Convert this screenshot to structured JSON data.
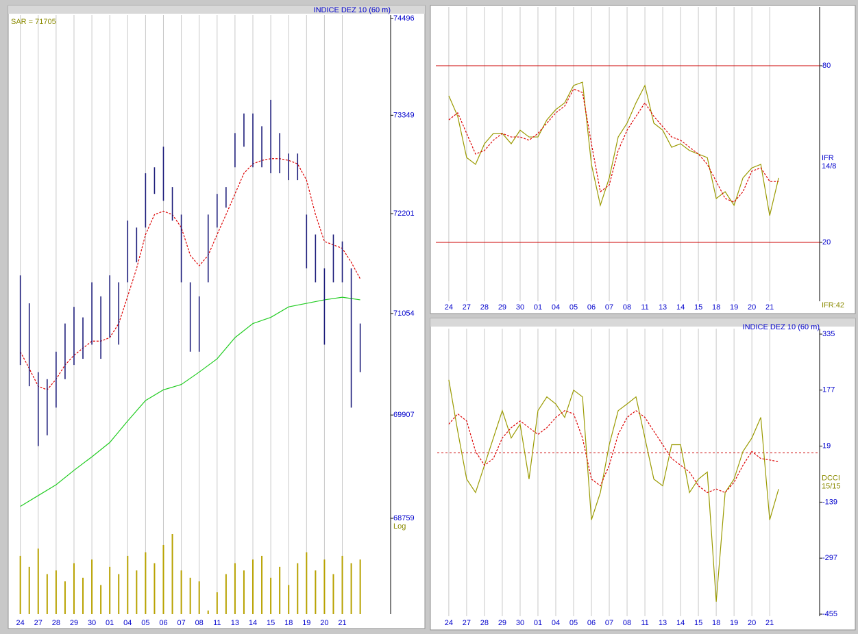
{
  "chart_data": [
    {
      "type": "hilo",
      "title": "INDICE DEZ 10 (60 m)",
      "annotation": "SAR = 71705",
      "scale_label": "Log",
      "log_scale": true,
      "categories": [
        "24",
        "27",
        "28",
        "29",
        "30",
        "01",
        "04",
        "05",
        "06",
        "07",
        "08",
        "11",
        "13",
        "14",
        "15",
        "18",
        "19",
        "20",
        "21"
      ],
      "xlim": [
        -0.6,
        20.7
      ],
      "x": [
        0,
        0.5,
        1,
        1.5,
        2,
        2.5,
        3,
        3.5,
        4,
        4.5,
        5,
        5.5,
        6,
        6.5,
        7,
        7.5,
        8,
        8.5,
        9,
        9.5,
        10,
        10.5,
        11,
        11.5,
        12,
        12.5,
        13,
        13.5,
        14,
        14.5,
        15,
        15.5,
        16,
        16.5,
        17,
        17.5,
        18,
        18.5,
        19
      ],
      "high": [
        71490,
        71170,
        70390,
        70310,
        70620,
        70940,
        71130,
        71010,
        71410,
        71250,
        71490,
        71410,
        72120,
        72040,
        72670,
        72740,
        72980,
        72510,
        72190,
        71410,
        71250,
        72190,
        72430,
        72510,
        73140,
        73370,
        73370,
        73220,
        73530,
        73140,
        72900,
        72900,
        72190,
        71960,
        71570,
        71960,
        71880,
        71570,
        70940
      ],
      "low": [
        70470,
        70230,
        69560,
        69680,
        69990,
        70310,
        70470,
        70540,
        70700,
        70540,
        70780,
        70700,
        71410,
        71640,
        72040,
        72430,
        72350,
        72120,
        71410,
        70620,
        70620,
        71410,
        72040,
        72270,
        72740,
        72980,
        72740,
        72740,
        72670,
        72670,
        72590,
        72590,
        71570,
        71410,
        70700,
        71410,
        71410,
        69990,
        70390
      ],
      "bar_color": "#1c1c7a",
      "series": [
        {
          "color": "#dd0000",
          "dashed": true,
          "values": [
            70620,
            70430,
            70230,
            70190,
            70310,
            70470,
            70580,
            70660,
            70740,
            70740,
            70780,
            70940,
            71250,
            71570,
            71960,
            72190,
            72230,
            72190,
            72040,
            71720,
            71600,
            71720,
            71960,
            72190,
            72430,
            72670,
            72780,
            72820,
            72840,
            72840,
            72820,
            72780,
            72590,
            72190,
            71880,
            71840,
            71800,
            71640,
            71450
          ]
        },
        {
          "color": "#22cc22",
          "x": [
            0,
            1,
            2,
            3,
            4,
            5,
            6,
            7,
            8,
            9,
            10,
            11,
            12,
            13,
            14,
            15,
            16,
            17,
            18,
            19
          ],
          "values": [
            68890,
            69010,
            69130,
            69290,
            69440,
            69600,
            69840,
            70070,
            70190,
            70250,
            70390,
            70540,
            70780,
            70940,
            71010,
            71130,
            71170,
            71210,
            71240,
            71210
          ]
        }
      ],
      "volume": {
        "color": "#b8a200",
        "values": [
          80,
          65,
          90,
          55,
          60,
          45,
          70,
          50,
          75,
          40,
          65,
          55,
          80,
          60,
          85,
          70,
          95,
          110,
          60,
          50,
          45,
          5,
          30,
          55,
          70,
          60,
          75,
          80,
          50,
          65,
          40,
          70,
          85,
          60,
          75,
          55,
          80,
          70,
          75
        ]
      },
      "ylim": [
        68759,
        74496
      ],
      "yticks": [
        74496,
        73349,
        72201,
        71054,
        69907,
        68759
      ],
      "text_color": "#0000cc",
      "label_color": "#8a8a00"
    },
    {
      "type": "line",
      "labels": [
        "IFR",
        "14/8"
      ],
      "footer": "IFR:42",
      "categories": [
        "24",
        "27",
        "28",
        "29",
        "30",
        "01",
        "04",
        "05",
        "06",
        "07",
        "08",
        "11",
        "13",
        "14",
        "15",
        "18",
        "19",
        "20",
        "21"
      ],
      "xlim": [
        -0.65,
        20.8
      ],
      "x": [
        0,
        0.5,
        1,
        1.5,
        2,
        2.5,
        3,
        3.5,
        4,
        4.5,
        5,
        5.5,
        6,
        6.5,
        7,
        7.5,
        8,
        8.5,
        9,
        9.5,
        10,
        10.5,
        11,
        11.5,
        12,
        12.5,
        13,
        13.5,
        14,
        14.5,
        15,
        15.5,
        16,
        16.5,
        17,
        17.5,
        18,
        18.5
      ],
      "series": [
        {
          "color": "#9a9a00",
          "values": [
            69.8,
            62.8,
            48.8,
            46.5,
            53.5,
            57,
            57,
            53.5,
            58.1,
            55.8,
            55.8,
            61.6,
            65.1,
            67.4,
            73.3,
            74.4,
            46.5,
            32.6,
            41.9,
            55.8,
            60.5,
            67.4,
            73.3,
            60.5,
            58.1,
            52.3,
            53.5,
            51.2,
            50,
            48.8,
            34.9,
            37.2,
            32.6,
            41.9,
            45.3,
            46.5,
            29.1,
            41.9
          ]
        },
        {
          "color": "#dd0000",
          "dashed": true,
          "values": [
            61.6,
            64,
            57,
            50,
            51.2,
            54.7,
            57,
            55.8,
            55.8,
            54.7,
            57,
            60.5,
            64,
            66.3,
            72.1,
            70.9,
            53.5,
            37.2,
            39.5,
            51.2,
            58.1,
            62.8,
            67.4,
            62.8,
            59.3,
            55.8,
            54.7,
            52.3,
            50,
            46.5,
            40.7,
            34.9,
            33.7,
            37.2,
            44.2,
            45.3,
            40.7,
            40.7
          ]
        }
      ],
      "ylim": [
        0,
        100
      ],
      "yticks": [
        80,
        20
      ],
      "tick_line_color": "#cc0000",
      "text_color": "#0000cc",
      "label_color": "#8a8a00"
    },
    {
      "type": "line",
      "title": "INDICE DEZ 10 (60 m)",
      "labels": [
        "DCCI",
        "15/15"
      ],
      "categories": [
        "24",
        "27",
        "28",
        "29",
        "30",
        "01",
        "04",
        "05",
        "06",
        "07",
        "08",
        "11",
        "13",
        "14",
        "15",
        "18",
        "19",
        "20",
        "21"
      ],
      "xlim": [
        -0.65,
        20.8
      ],
      "x": [
        0,
        0.5,
        1,
        1.5,
        2,
        2.5,
        3,
        3.5,
        4,
        4.5,
        5,
        5.5,
        6,
        6.5,
        7,
        7.5,
        8,
        8.5,
        9,
        9.5,
        10,
        10.5,
        11,
        11.5,
        12,
        12.5,
        13,
        13.5,
        14,
        14.5,
        15,
        15.5,
        16,
        16.5,
        17,
        17.5,
        18,
        18.5
      ],
      "series": [
        {
          "color": "#9a9a00",
          "values": [
            206,
            61,
            -74,
            -112,
            -35,
            42,
            119,
            42,
            81,
            -74,
            119,
            158,
            138,
            100,
            177,
            158,
            -189,
            -112,
            23,
            119,
            138,
            158,
            42,
            -74,
            -93,
            23,
            23,
            -112,
            -74,
            -54,
            -420,
            -112,
            -74,
            4,
            42,
            100,
            -189,
            -102
          ]
        },
        {
          "color": "#dd0000",
          "dashed": true,
          "values": [
            81,
            110,
            90,
            4,
            -35,
            -16,
            42,
            71,
            90,
            71,
            52,
            71,
            100,
            119,
            110,
            42,
            -74,
            -93,
            -35,
            52,
            100,
            119,
            100,
            61,
            23,
            -16,
            -35,
            -54,
            -93,
            -112,
            -102,
            -112,
            -83,
            -35,
            4,
            -16,
            -20,
            -25
          ]
        }
      ],
      "reference_lines": [
        0
      ],
      "reference_color": "#cc0000",
      "ylim": [
        -455,
        335
      ],
      "yticks": [
        335,
        177,
        19,
        -139,
        -297,
        -455
      ],
      "text_color": "#0000cc",
      "label_color": "#8a8a00"
    }
  ]
}
